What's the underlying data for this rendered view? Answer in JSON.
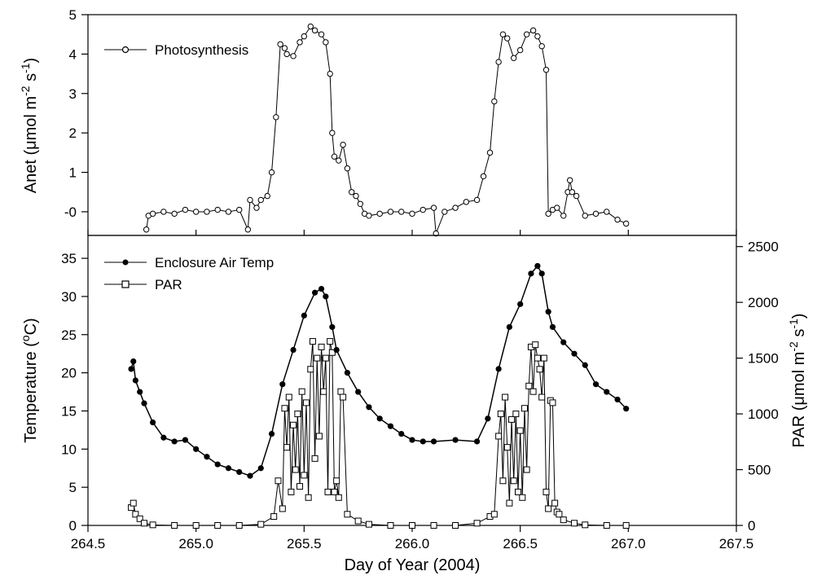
{
  "chart_data": [
    {
      "type": "line",
      "ylabel": "Anet (μmol m^-2 s^-1)",
      "xlim": [
        264.5,
        267.5
      ],
      "ylim": [
        -0.6,
        5
      ],
      "yticks": [
        "-0",
        "1",
        "2",
        "3",
        "4",
        "5"
      ],
      "ytick_values": [
        0,
        1,
        2,
        3,
        4,
        5
      ],
      "legend_position": "top-left",
      "series": [
        {
          "name": "Photosynthesis",
          "marker": "open-circle",
          "x": [
            264.77,
            264.78,
            264.8,
            264.85,
            264.9,
            264.95,
            265.0,
            265.05,
            265.1,
            265.15,
            265.2,
            265.24,
            265.25,
            265.28,
            265.3,
            265.33,
            265.35,
            265.37,
            265.39,
            265.41,
            265.42,
            265.45,
            265.48,
            265.5,
            265.53,
            265.55,
            265.58,
            265.6,
            265.62,
            265.63,
            265.64,
            265.66,
            265.68,
            265.7,
            265.72,
            265.74,
            265.76,
            265.78,
            265.8,
            265.85,
            265.9,
            265.95,
            266.0,
            266.05,
            266.1,
            266.11,
            266.15,
            266.2,
            266.25,
            266.3,
            266.33,
            266.36,
            266.38,
            266.4,
            266.42,
            266.44,
            266.47,
            266.5,
            266.53,
            266.56,
            266.58,
            266.6,
            266.62,
            266.63,
            266.65,
            266.67,
            266.7,
            266.72,
            266.73,
            266.74,
            266.76,
            266.8,
            266.85,
            266.9,
            266.95,
            266.99
          ],
          "y": [
            -0.45,
            -0.1,
            -0.05,
            0.0,
            -0.05,
            0.05,
            0.0,
            0.0,
            0.05,
            0.0,
            0.05,
            -0.45,
            0.3,
            0.1,
            0.3,
            0.4,
            1.0,
            2.4,
            4.25,
            4.15,
            4.0,
            3.95,
            4.3,
            4.45,
            4.7,
            4.6,
            4.5,
            4.3,
            3.5,
            2.0,
            1.4,
            1.3,
            1.7,
            1.1,
            0.5,
            0.4,
            0.2,
            -0.05,
            -0.1,
            -0.05,
            0.0,
            0.0,
            -0.05,
            0.05,
            0.1,
            -0.55,
            0.0,
            0.1,
            0.25,
            0.3,
            0.9,
            1.5,
            2.8,
            3.8,
            4.5,
            4.4,
            3.9,
            4.1,
            4.5,
            4.6,
            4.45,
            4.2,
            3.6,
            -0.05,
            0.05,
            0.1,
            -0.1,
            0.5,
            0.8,
            0.5,
            0.4,
            -0.1,
            -0.05,
            0.0,
            -0.2,
            -0.3
          ]
        }
      ]
    },
    {
      "type": "scatter",
      "xlabel": "Day of Year (2004)",
      "ylabel": "Temperature (°C)",
      "y2label": "PAR (μmol m^-2 s^-1)",
      "xlim": [
        264.5,
        267.5
      ],
      "ylim": [
        0,
        38
      ],
      "y2lim": [
        0,
        2600
      ],
      "xticks": [
        "264.5",
        "265.0",
        "265.5",
        "266.0",
        "266.5",
        "267.0",
        "267.5"
      ],
      "xtick_values": [
        264.5,
        265.0,
        265.5,
        266.0,
        266.5,
        267.0,
        267.5
      ],
      "yticks": [
        "0",
        "5",
        "10",
        "15",
        "20",
        "25",
        "30",
        "35"
      ],
      "ytick_values": [
        0,
        5,
        10,
        15,
        20,
        25,
        30,
        35
      ],
      "y2ticks": [
        "0",
        "500",
        "1000",
        "1500",
        "2000",
        "2500"
      ],
      "y2tick_values": [
        0,
        500,
        1000,
        1500,
        2000,
        2500
      ],
      "legend_position": "top-left",
      "series": [
        {
          "name": "Enclosure Air Temp",
          "marker": "filled-circle",
          "axis": "left",
          "x": [
            264.7,
            264.71,
            264.72,
            264.74,
            264.76,
            264.8,
            264.85,
            264.9,
            264.95,
            265.0,
            265.05,
            265.1,
            265.15,
            265.2,
            265.25,
            265.3,
            265.35,
            265.4,
            265.45,
            265.5,
            265.55,
            265.58,
            265.6,
            265.63,
            265.65,
            265.7,
            265.75,
            265.8,
            265.85,
            265.9,
            265.95,
            266.0,
            266.05,
            266.1,
            266.2,
            266.3,
            266.35,
            266.4,
            266.45,
            266.5,
            266.55,
            266.58,
            266.6,
            266.63,
            266.65,
            266.7,
            266.75,
            266.8,
            266.85,
            266.9,
            266.95,
            266.99
          ],
          "y": [
            20.5,
            21.5,
            19.0,
            17.5,
            16.0,
            13.5,
            11.5,
            11.0,
            11.2,
            10.0,
            9.0,
            8.0,
            7.5,
            7.0,
            6.5,
            7.5,
            12.0,
            18.5,
            23.0,
            27.5,
            30.5,
            31.0,
            30.0,
            26.0,
            23.0,
            20.0,
            17.5,
            15.5,
            14.0,
            13.0,
            12.0,
            11.2,
            11.0,
            11.0,
            11.2,
            11.0,
            14.0,
            20.5,
            26.0,
            29.0,
            33.0,
            34.0,
            33.0,
            28.0,
            26.0,
            24.0,
            22.5,
            21.0,
            18.5,
            17.5,
            16.5,
            15.3
          ]
        },
        {
          "name": "PAR",
          "marker": "open-square",
          "axis": "right",
          "x": [
            264.7,
            264.71,
            264.72,
            264.74,
            264.76,
            264.8,
            264.9,
            265.0,
            265.1,
            265.2,
            265.3,
            265.36,
            265.38,
            265.4,
            265.41,
            265.42,
            265.43,
            265.44,
            265.45,
            265.46,
            265.47,
            265.48,
            265.49,
            265.5,
            265.51,
            265.52,
            265.53,
            265.54,
            265.55,
            265.56,
            265.57,
            265.58,
            265.59,
            265.6,
            265.61,
            265.62,
            265.63,
            265.64,
            265.65,
            265.66,
            265.67,
            265.68,
            265.7,
            265.75,
            265.8,
            265.9,
            266.0,
            266.1,
            266.2,
            266.3,
            266.36,
            266.38,
            266.4,
            266.41,
            266.42,
            266.43,
            266.44,
            266.45,
            266.46,
            266.47,
            266.48,
            266.49,
            266.5,
            266.51,
            266.52,
            266.53,
            266.54,
            266.55,
            266.56,
            266.57,
            266.58,
            266.59,
            266.6,
            266.61,
            266.62,
            266.63,
            266.64,
            266.65,
            266.66,
            266.67,
            266.68,
            266.7,
            266.75,
            266.8,
            266.9,
            266.99
          ],
          "y": [
            160,
            200,
            100,
            60,
            20,
            5,
            0,
            0,
            0,
            0,
            10,
            80,
            400,
            150,
            1050,
            700,
            1150,
            300,
            900,
            500,
            1000,
            350,
            1200,
            450,
            1100,
            250,
            1400,
            1650,
            600,
            1500,
            800,
            1600,
            1200,
            1500,
            300,
            1650,
            1550,
            300,
            400,
            250,
            1200,
            1150,
            100,
            40,
            10,
            0,
            0,
            0,
            0,
            20,
            80,
            100,
            800,
            1000,
            400,
            1150,
            700,
            200,
            950,
            400,
            1000,
            300,
            850,
            250,
            1050,
            500,
            1250,
            1600,
            1200,
            1620,
            1500,
            1400,
            1150,
            1500,
            300,
            150,
            1120,
            1100,
            200,
            120,
            100,
            50,
            20,
            5,
            0,
            0
          ]
        }
      ]
    }
  ]
}
